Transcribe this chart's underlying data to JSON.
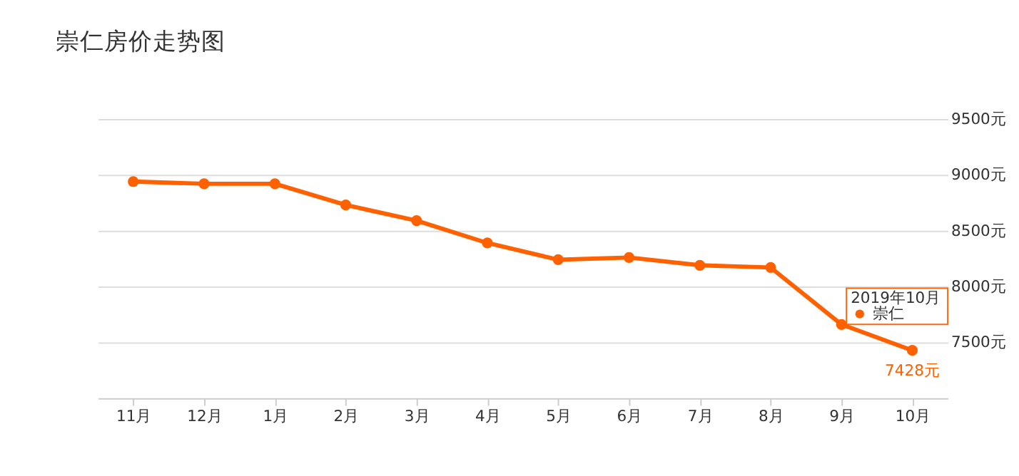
{
  "chart_data": {
    "type": "line",
    "title": "崇仁房价走势图",
    "categories": [
      "11月",
      "12月",
      "1月",
      "2月",
      "3月",
      "4月",
      "5月",
      "6月",
      "7月",
      "8月",
      "9月",
      "10月"
    ],
    "series": [
      {
        "name": "崇仁",
        "color": "#ff6000",
        "values": [
          8940,
          8920,
          8920,
          8730,
          8590,
          8390,
          8240,
          8260,
          8190,
          8170,
          7660,
          7428
        ],
        "value_labels": [
          null,
          null,
          null,
          null,
          null,
          null,
          null,
          null,
          null,
          null,
          null,
          "7428元"
        ]
      }
    ],
    "ylim": [
      7000,
      9500
    ],
    "yticks": [
      {
        "value": 7500,
        "label": "7500元"
      },
      {
        "value": 8000,
        "label": "8000元"
      },
      {
        "value": 8500,
        "label": "8500元"
      },
      {
        "value": 9000,
        "label": "9000元"
      },
      {
        "value": 9500,
        "label": "9500元"
      }
    ],
    "annotations": [
      "2019年10月"
    ],
    "grid": "y",
    "marker": "circle",
    "line_style": "solid",
    "legend": "bottom right"
  }
}
